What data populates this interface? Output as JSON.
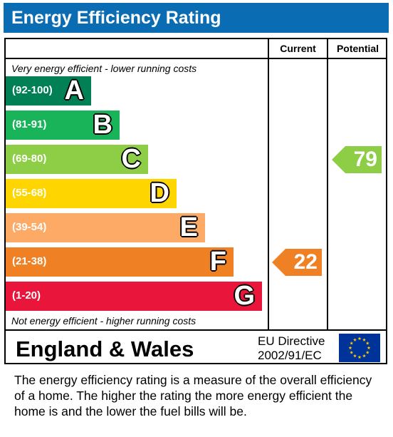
{
  "header": {
    "title": "Energy Efficiency Rating"
  },
  "columns": {
    "current": "Current",
    "potential": "Potential"
  },
  "notes": {
    "top": "Very energy efficient - lower running costs",
    "bottom": "Not energy efficient - higher running costs"
  },
  "chart_data": {
    "type": "bar",
    "title": "Energy Efficiency Rating",
    "categories": [
      "A",
      "B",
      "C",
      "D",
      "E",
      "F",
      "G"
    ],
    "ranges": [
      "(92-100)",
      "(81-91)",
      "(69-80)",
      "(55-68)",
      "(39-54)",
      "(21-38)",
      "(1-20)"
    ],
    "colors": [
      "#008054",
      "#19b459",
      "#8dce46",
      "#ffd500",
      "#fcaa65",
      "#ef8023",
      "#e9153b"
    ],
    "series": [
      {
        "name": "Current",
        "rating": 22,
        "band": "F",
        "color": "#ef8023"
      },
      {
        "name": "Potential",
        "rating": 79,
        "band": "C",
        "color": "#8dce46"
      }
    ]
  },
  "footer": {
    "country": "England & Wales",
    "directive_line1": "EU Directive",
    "directive_line2": "2002/91/EC",
    "description": "The energy efficiency rating is a measure of the overall efficiency of a home.  The higher the rating the more energy efficient the home is and the lower the fuel bills will be."
  },
  "icons": {
    "flag": "eu-flag-icon"
  }
}
